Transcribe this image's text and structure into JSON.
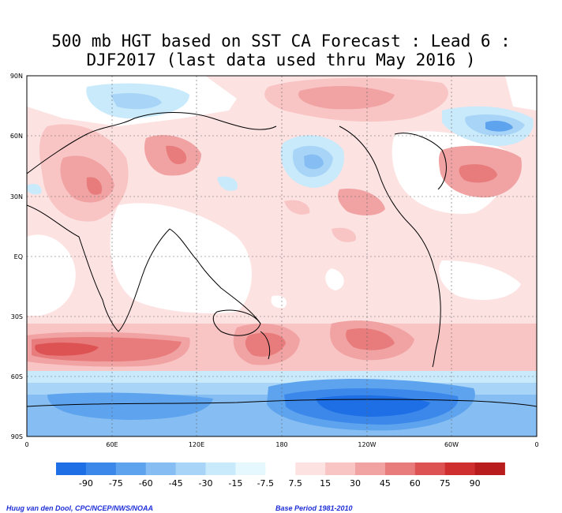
{
  "title_line1": "500 mb HGT based on SST CA Forecast : Lead 6 :",
  "title_line2": "DJF2017 (last data used thru May 2016 )",
  "y_axis_labels": [
    "90N",
    "60N",
    "30N",
    "EQ",
    "30S",
    "60S",
    "90S"
  ],
  "x_axis_labels": [
    "0",
    "60E",
    "120E",
    "180",
    "120W",
    "60W",
    "0"
  ],
  "colorbar": {
    "labels": [
      "-90",
      "-75",
      "-60",
      "-45",
      "-30",
      "-15",
      "-7.5",
      "7.5",
      "15",
      "30",
      "45",
      "60",
      "75",
      "90"
    ],
    "colors": [
      "#1e6fe6",
      "#3b88ea",
      "#5ea3ee",
      "#86bef3",
      "#a8d5f7",
      "#c9eafb",
      "#e4f8fd",
      "#ffffff",
      "#fde2e2",
      "#f8c4c4",
      "#f1a2a2",
      "#e87c7c",
      "#dd5252",
      "#cf2f2f",
      "#b81c1c"
    ]
  },
  "credit_left": "Huug van den Dool, CPC/NCEP/NWS/NOAA",
  "credit_right": "Base Period 1981-2010"
}
